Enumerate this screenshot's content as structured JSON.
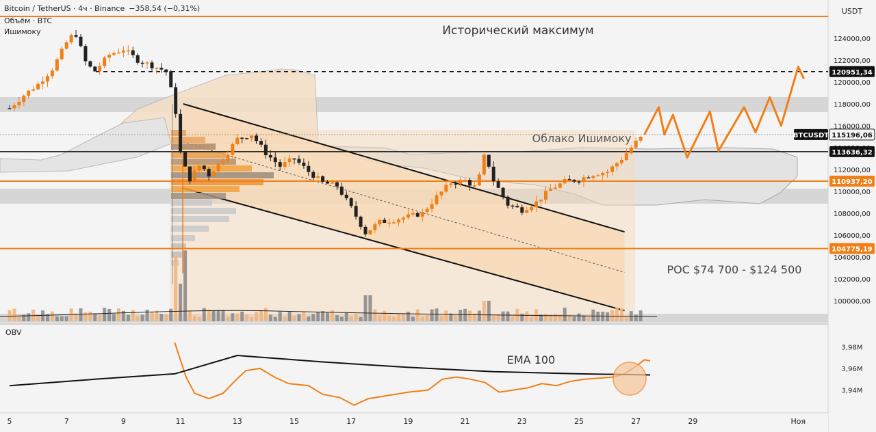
{
  "header": {
    "symbol_line": "Bitcoin / TetherUS · 4ч · Binance",
    "change": "−358,54 (−0,31%)",
    "volume_label": "Объём · BTC",
    "ichimoku_label": "Ишимоку"
  },
  "price_axis": {
    "currency": "USDT",
    "ticks": [
      "124000,00",
      "122000,00",
      "120000,00",
      "118000,00",
      "116000,00",
      "114000,00",
      "112000,00",
      "110000,00",
      "108000,00",
      "106000,00",
      "104000,00",
      "102000,00",
      "100000,00"
    ],
    "ticks_values": [
      124000,
      122000,
      120000,
      118000,
      116000,
      114000,
      112000,
      110000,
      108000,
      106000,
      104000,
      102000,
      100000
    ],
    "tags": [
      {
        "label": "120951,34",
        "value": 120951.34,
        "style": "dark"
      },
      {
        "label": "BTCUSDT",
        "value": 115196.06,
        "style": "name"
      },
      {
        "label": "115196,06",
        "value": 115196.06,
        "style": "dark"
      },
      {
        "label": "113636,32",
        "value": 113636.32,
        "style": "dark"
      },
      {
        "label": "110937,20",
        "value": 110937.2,
        "style": "orange"
      },
      {
        "label": "104775,19",
        "value": 104775.19,
        "style": "orange"
      }
    ]
  },
  "obv_axis": {
    "ticks": [
      "3,98M",
      "3,96M",
      "3,94M"
    ],
    "ticks_values": [
      3.98,
      3.96,
      3.94
    ]
  },
  "time_axis": {
    "labels": [
      "5",
      "7",
      "9",
      "11",
      "13",
      "15",
      "17",
      "19",
      "21",
      "23",
      "25",
      "27",
      "29",
      "Ноя"
    ]
  },
  "annotations": {
    "ath": "Исторический максимум",
    "cloud": "Облако Ишимоку",
    "poc": "POC $74 700 - $124 500",
    "ema": "EMA 100",
    "obv": "OBV"
  },
  "colors": {
    "orange": "#f07f17",
    "bull": "#f07f17",
    "bear": "#222222",
    "channel_fill": "#f7d9b8",
    "zone_gray": "#d8d8d8"
  },
  "chart_data": [
    {
      "type": "candlestick",
      "title": "Bitcoin / TetherUS · 4ч · Binance",
      "ylabel": "USDT",
      "ylim": [
        98200,
        125800
      ],
      "x_ticks": [
        "5",
        "7",
        "9",
        "11",
        "13",
        "15",
        "17",
        "19",
        "21",
        "23",
        "25",
        "27",
        "29",
        "Ноя"
      ],
      "levels": [
        {
          "name": "Исторический максимум",
          "value": 125500
        },
        {
          "name": "dashed",
          "value": 120951.34
        },
        {
          "name": "black",
          "value": 113636.32
        },
        {
          "name": "orange",
          "value": 110937.2
        },
        {
          "name": "orange",
          "value": 104775.19
        }
      ],
      "close_path": [
        {
          "day": 5.0,
          "close": 117600
        },
        {
          "day": 5.5,
          "close": 118800
        },
        {
          "day": 6.0,
          "close": 119800
        },
        {
          "day": 6.5,
          "close": 121200
        },
        {
          "day": 7.0,
          "close": 123600
        },
        {
          "day": 7.3,
          "close": 124600
        },
        {
          "day": 7.7,
          "close": 121600
        },
        {
          "day": 8.0,
          "close": 121000
        },
        {
          "day": 8.5,
          "close": 122500
        },
        {
          "day": 9.0,
          "close": 123000
        },
        {
          "day": 9.5,
          "close": 122000
        },
        {
          "day": 10.0,
          "close": 121500
        },
        {
          "day": 10.5,
          "close": 121000
        },
        {
          "day": 10.8,
          "close": 118000
        },
        {
          "day": 11.0,
          "close": 113500
        },
        {
          "day": 11.3,
          "close": 111000
        },
        {
          "day": 11.7,
          "close": 112500
        },
        {
          "day": 12.0,
          "close": 111500
        },
        {
          "day": 12.5,
          "close": 113000
        },
        {
          "day": 13.0,
          "close": 114800
        },
        {
          "day": 13.5,
          "close": 115200
        },
        {
          "day": 14.0,
          "close": 113500
        },
        {
          "day": 14.5,
          "close": 112300
        },
        {
          "day": 15.0,
          "close": 113000
        },
        {
          "day": 15.5,
          "close": 111800
        },
        {
          "day": 16.0,
          "close": 110800
        },
        {
          "day": 16.5,
          "close": 110500
        },
        {
          "day": 17.0,
          "close": 108500
        },
        {
          "day": 17.5,
          "close": 106200
        },
        {
          "day": 18.0,
          "close": 107200
        },
        {
          "day": 18.5,
          "close": 107400
        },
        {
          "day": 19.0,
          "close": 107700
        },
        {
          "day": 19.5,
          "close": 108000
        },
        {
          "day": 20.0,
          "close": 109500
        },
        {
          "day": 20.5,
          "close": 110800
        },
        {
          "day": 21.0,
          "close": 111000
        },
        {
          "day": 21.4,
          "close": 110300
        },
        {
          "day": 21.7,
          "close": 113500
        },
        {
          "day": 22.0,
          "close": 111000
        },
        {
          "day": 22.5,
          "close": 108800
        },
        {
          "day": 23.0,
          "close": 108300
        },
        {
          "day": 23.5,
          "close": 109000
        },
        {
          "day": 24.0,
          "close": 110200
        },
        {
          "day": 24.5,
          "close": 110900
        },
        {
          "day": 25.0,
          "close": 111100
        },
        {
          "day": 25.5,
          "close": 111600
        },
        {
          "day": 26.0,
          "close": 111800
        },
        {
          "day": 26.5,
          "close": 113000
        },
        {
          "day": 27.0,
          "close": 114500
        },
        {
          "day": 27.3,
          "close": 115196
        }
      ],
      "projection": [
        {
          "day": 27.3,
          "price": 115196
        },
        {
          "day": 27.8,
          "price": 117700
        },
        {
          "day": 28.0,
          "price": 115200
        },
        {
          "day": 28.3,
          "price": 117000
        },
        {
          "day": 28.8,
          "price": 113100
        },
        {
          "day": 29.6,
          "price": 117300
        },
        {
          "day": 29.9,
          "price": 113700
        },
        {
          "day": 30.8,
          "price": 117700
        },
        {
          "day": 31.2,
          "price": 115400
        },
        {
          "day": 31.7,
          "price": 118600
        },
        {
          "day": 32.1,
          "price": 116000
        },
        {
          "day": 32.7,
          "price": 121400
        },
        {
          "day": 32.9,
          "price": 120300
        }
      ],
      "channel": {
        "upper": [
          {
            "day": 11.1,
            "price": 118000
          },
          {
            "day": 26.6,
            "price": 106300
          }
        ],
        "lower": [
          {
            "day": 11.1,
            "price": 110300
          },
          {
            "day": 26.6,
            "price": 99100
          }
        ],
        "mid": [
          {
            "day": 11.1,
            "price": 114500
          },
          {
            "day": 26.6,
            "price": 102600
          }
        ]
      }
    },
    {
      "type": "line",
      "title": "OBV",
      "ylim": [
        3.93,
        3.99
      ],
      "series": [
        {
          "name": "OBV",
          "points": [
            {
              "day": 10.8,
              "v": 3.984
            },
            {
              "day": 11.2,
              "v": 3.952
            },
            {
              "day": 11.5,
              "v": 3.937
            },
            {
              "day": 12.0,
              "v": 3.932
            },
            {
              "day": 12.5,
              "v": 3.937
            },
            {
              "day": 12.9,
              "v": 3.948
            },
            {
              "day": 13.3,
              "v": 3.958
            },
            {
              "day": 13.8,
              "v": 3.96
            },
            {
              "day": 14.3,
              "v": 3.952
            },
            {
              "day": 14.8,
              "v": 3.946
            },
            {
              "day": 15.5,
              "v": 3.944
            },
            {
              "day": 16.0,
              "v": 3.936
            },
            {
              "day": 16.6,
              "v": 3.933
            },
            {
              "day": 17.1,
              "v": 3.926
            },
            {
              "day": 17.6,
              "v": 3.932
            },
            {
              "day": 18.3,
              "v": 3.935
            },
            {
              "day": 19.0,
              "v": 3.938
            },
            {
              "day": 19.7,
              "v": 3.94
            },
            {
              "day": 20.2,
              "v": 3.95
            },
            {
              "day": 20.7,
              "v": 3.952
            },
            {
              "day": 21.2,
              "v": 3.95
            },
            {
              "day": 21.7,
              "v": 3.947
            },
            {
              "day": 22.2,
              "v": 3.938
            },
            {
              "day": 22.7,
              "v": 3.94
            },
            {
              "day": 23.2,
              "v": 3.942
            },
            {
              "day": 23.7,
              "v": 3.946
            },
            {
              "day": 24.2,
              "v": 3.944
            },
            {
              "day": 24.7,
              "v": 3.948
            },
            {
              "day": 25.2,
              "v": 3.95
            },
            {
              "day": 25.7,
              "v": 3.951
            },
            {
              "day": 26.2,
              "v": 3.952
            },
            {
              "day": 26.6,
              "v": 3.955
            },
            {
              "day": 27.0,
              "v": 3.962
            },
            {
              "day": 27.3,
              "v": 3.968
            },
            {
              "day": 27.5,
              "v": 3.967
            }
          ]
        },
        {
          "name": "EMA 100",
          "points": [
            {
              "day": 5.0,
              "v": 3.944
            },
            {
              "day": 8.0,
              "v": 3.95
            },
            {
              "day": 10.8,
              "v": 3.955
            },
            {
              "day": 13.0,
              "v": 3.972
            },
            {
              "day": 16.0,
              "v": 3.966
            },
            {
              "day": 19.0,
              "v": 3.961
            },
            {
              "day": 22.0,
              "v": 3.957
            },
            {
              "day": 25.0,
              "v": 3.955
            },
            {
              "day": 27.5,
              "v": 3.954
            }
          ]
        }
      ]
    }
  ]
}
